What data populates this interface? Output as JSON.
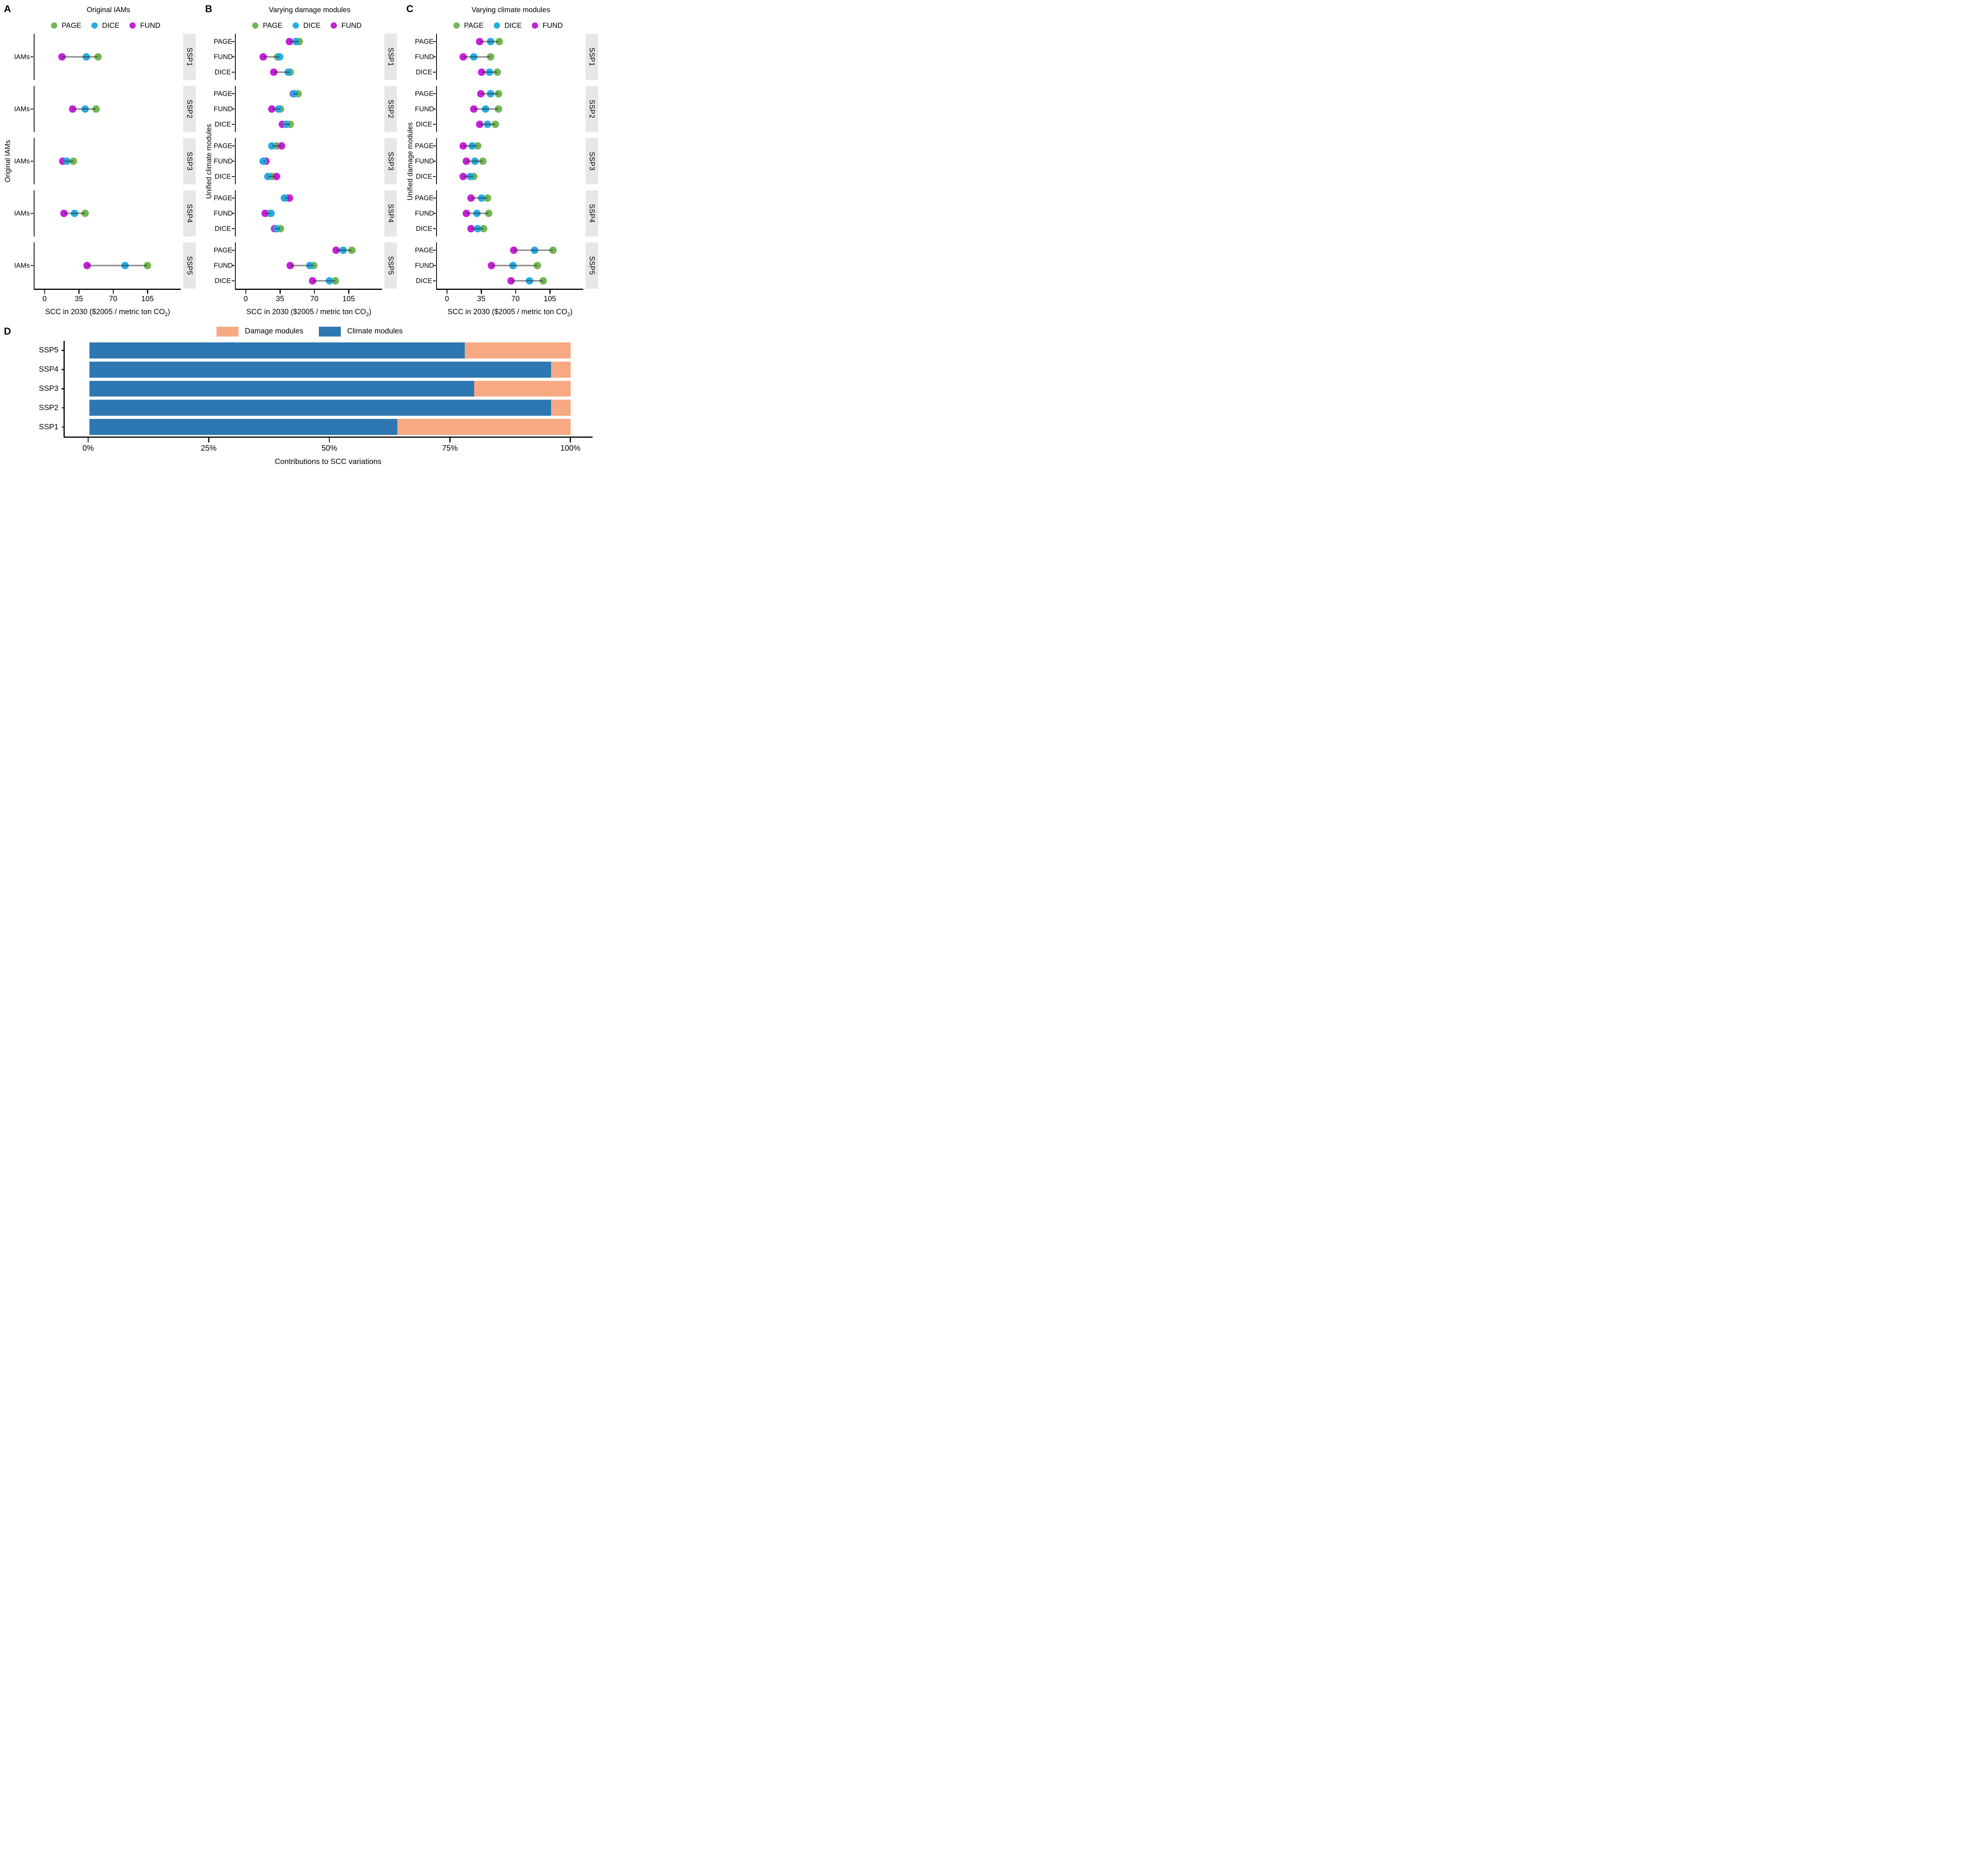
{
  "legend": {
    "items": [
      {
        "label": "PAGE",
        "color": "#72b755"
      },
      {
        "label": "DICE",
        "color": "#26ace2"
      },
      {
        "label": "FUND",
        "color": "#c521d8"
      }
    ]
  },
  "colors": {
    "page_green": "#72b755",
    "dice_blue": "#26ace2",
    "fund_magenta": "#c521d8",
    "connector": "rgba(45,45,45,0.5)",
    "strip_bg": "#e7e7e7",
    "axis": "#000000",
    "d_climate_blue": "#2d78b3",
    "d_damage_salmon": "#f6a982"
  },
  "chart_data": [
    {
      "id": "A",
      "type": "dotplot-facets",
      "panel_label": "A",
      "title": "Original IAMs",
      "ylabel": "Original IAMs",
      "xlabel_pre": "SCC in 2030 ($2005 / metric ton CO",
      "xlabel_sub": "2",
      "xlabel_post": ")",
      "x_ticks": [
        0,
        35,
        70,
        105
      ],
      "x_domain": [
        -11,
        139
      ],
      "legend_position": "top",
      "facets": [
        {
          "strip": "SSP1",
          "rows": [
            {
              "label": "IAMs",
              "values": {
                "FUND": 17,
                "DICE": 42,
                "PAGE": 54
              }
            }
          ]
        },
        {
          "strip": "SSP2",
          "rows": [
            {
              "label": "IAMs",
              "values": {
                "FUND": 28,
                "DICE": 41,
                "PAGE": 52
              }
            }
          ]
        },
        {
          "strip": "SSP3",
          "rows": [
            {
              "label": "IAMs",
              "values": {
                "FUND": 18,
                "DICE": 22,
                "PAGE": 29
              }
            }
          ]
        },
        {
          "strip": "SSP4",
          "rows": [
            {
              "label": "IAMs",
              "values": {
                "FUND": 19,
                "DICE": 30,
                "PAGE": 41
              }
            }
          ]
        },
        {
          "strip": "SSP5",
          "rows": [
            {
              "label": "IAMs",
              "values": {
                "FUND": 43,
                "DICE": 82,
                "PAGE": 105
              }
            }
          ]
        }
      ]
    },
    {
      "id": "B",
      "type": "dotplot-facets",
      "panel_label": "B",
      "title": "Varying damage modules",
      "ylabel": "Unified climate modules",
      "xlabel_pre": "SCC in 2030 ($2005 / metric ton CO",
      "xlabel_sub": "2",
      "xlabel_post": ")",
      "x_ticks": [
        0,
        35,
        70,
        105
      ],
      "x_domain": [
        -11,
        139
      ],
      "legend_position": "top",
      "facets": [
        {
          "strip": "SSP1",
          "rows": [
            {
              "label": "PAGE",
              "values": {
                "FUND": 44,
                "DICE": 51,
                "PAGE": 54
              }
            },
            {
              "label": "FUND",
              "values": {
                "FUND": 17,
                "DICE": 34,
                "PAGE": 32
              }
            },
            {
              "label": "DICE",
              "values": {
                "FUND": 28,
                "DICE": 43,
                "PAGE": 45
              }
            }
          ]
        },
        {
          "strip": "SSP2",
          "rows": [
            {
              "label": "PAGE",
              "values": {
                "FUND": 48,
                "DICE": 49,
                "PAGE": 53
              }
            },
            {
              "label": "FUND",
              "values": {
                "FUND": 26,
                "DICE": 33,
                "PAGE": 35
              }
            },
            {
              "label": "DICE",
              "values": {
                "FUND": 37,
                "DICE": 41,
                "PAGE": 45
              }
            }
          ]
        },
        {
          "strip": "SSP3",
          "rows": [
            {
              "label": "PAGE",
              "values": {
                "FUND": 36,
                "DICE": 26,
                "PAGE": 31
              }
            },
            {
              "label": "FUND",
              "values": {
                "FUND": 20,
                "DICE": 17,
                "PAGE": 17
              }
            },
            {
              "label": "DICE",
              "values": {
                "FUND": 31,
                "DICE": 22,
                "PAGE": 26
              }
            }
          ]
        },
        {
          "strip": "SSP4",
          "rows": [
            {
              "label": "PAGE",
              "values": {
                "FUND": 44,
                "DICE": 39,
                "PAGE": 43
              }
            },
            {
              "label": "FUND",
              "values": {
                "FUND": 19,
                "DICE": 25,
                "PAGE": 24
              }
            },
            {
              "label": "DICE",
              "values": {
                "FUND": 29,
                "DICE": 31,
                "PAGE": 35
              }
            }
          ]
        },
        {
          "strip": "SSP5",
          "rows": [
            {
              "label": "PAGE",
              "values": {
                "FUND": 92,
                "DICE": 99,
                "PAGE": 108
              }
            },
            {
              "label": "FUND",
              "values": {
                "FUND": 45,
                "DICE": 65,
                "PAGE": 69
              }
            },
            {
              "label": "DICE",
              "values": {
                "FUND": 68,
                "DICE": 85,
                "PAGE": 91
              }
            }
          ]
        }
      ]
    },
    {
      "id": "C",
      "type": "dotplot-facets",
      "panel_label": "C",
      "title": "Varying climate modules",
      "ylabel": "Unified damage modules",
      "xlabel_pre": "SCC in 2030 ($2005 / metric ton CO",
      "xlabel_sub": "2",
      "xlabel_post": ")",
      "x_ticks": [
        0,
        35,
        70,
        105
      ],
      "x_domain": [
        -11,
        139
      ],
      "legend_position": "top",
      "facets": [
        {
          "strip": "SSP1",
          "rows": [
            {
              "label": "PAGE",
              "values": {
                "FUND": 33,
                "DICE": 44,
                "PAGE": 53
              }
            },
            {
              "label": "FUND",
              "values": {
                "FUND": 16,
                "DICE": 27,
                "PAGE": 44
              }
            },
            {
              "label": "DICE",
              "values": {
                "FUND": 35,
                "DICE": 43,
                "PAGE": 51
              }
            }
          ]
        },
        {
          "strip": "SSP2",
          "rows": [
            {
              "label": "PAGE",
              "values": {
                "FUND": 34,
                "DICE": 44,
                "PAGE": 52
              }
            },
            {
              "label": "FUND",
              "values": {
                "FUND": 27,
                "DICE": 39,
                "PAGE": 52
              }
            },
            {
              "label": "DICE",
              "values": {
                "FUND": 33,
                "DICE": 41,
                "PAGE": 49
              }
            }
          ]
        },
        {
          "strip": "SSP3",
          "rows": [
            {
              "label": "PAGE",
              "values": {
                "FUND": 16,
                "DICE": 25,
                "PAGE": 31
              }
            },
            {
              "label": "FUND",
              "values": {
                "FUND": 19,
                "DICE": 28,
                "PAGE": 36
              }
            },
            {
              "label": "DICE",
              "values": {
                "FUND": 16,
                "DICE": 23,
                "PAGE": 27
              }
            }
          ]
        },
        {
          "strip": "SSP4",
          "rows": [
            {
              "label": "PAGE",
              "values": {
                "FUND": 24,
                "DICE": 35,
                "PAGE": 41
              }
            },
            {
              "label": "FUND",
              "values": {
                "FUND": 19,
                "DICE": 30,
                "PAGE": 42
              }
            },
            {
              "label": "DICE",
              "values": {
                "FUND": 24,
                "DICE": 31,
                "PAGE": 37
              }
            }
          ]
        },
        {
          "strip": "SSP5",
          "rows": [
            {
              "label": "PAGE",
              "values": {
                "FUND": 68,
                "DICE": 89,
                "PAGE": 108
              }
            },
            {
              "label": "FUND",
              "values": {
                "FUND": 45,
                "DICE": 67,
                "PAGE": 92
              }
            },
            {
              "label": "DICE",
              "values": {
                "FUND": 65,
                "DICE": 84,
                "PAGE": 98
              }
            }
          ]
        }
      ]
    },
    {
      "id": "D",
      "type": "stacked-bar",
      "panel_label": "D",
      "xlabel": "Contributions to SCC variations",
      "x_domain": [
        -5.1,
        104.6
      ],
      "x_ticks": [
        {
          "v": 0,
          "label": "0%"
        },
        {
          "v": 25,
          "label": "25%"
        },
        {
          "v": 50,
          "label": "50%"
        },
        {
          "v": 75,
          "label": "75%"
        },
        {
          "v": 100,
          "label": "100%"
        }
      ],
      "categories": [
        "SSP5",
        "SSP4",
        "SSP3",
        "SSP2",
        "SSP1"
      ],
      "series": [
        {
          "name": "Damage modules",
          "color": "#f6a982",
          "values": [
            22,
            4,
            20,
            4,
            36
          ]
        },
        {
          "name": "Climate modules",
          "color": "#2d78b3",
          "values": [
            78,
            96,
            80,
            96,
            64
          ]
        }
      ]
    }
  ]
}
